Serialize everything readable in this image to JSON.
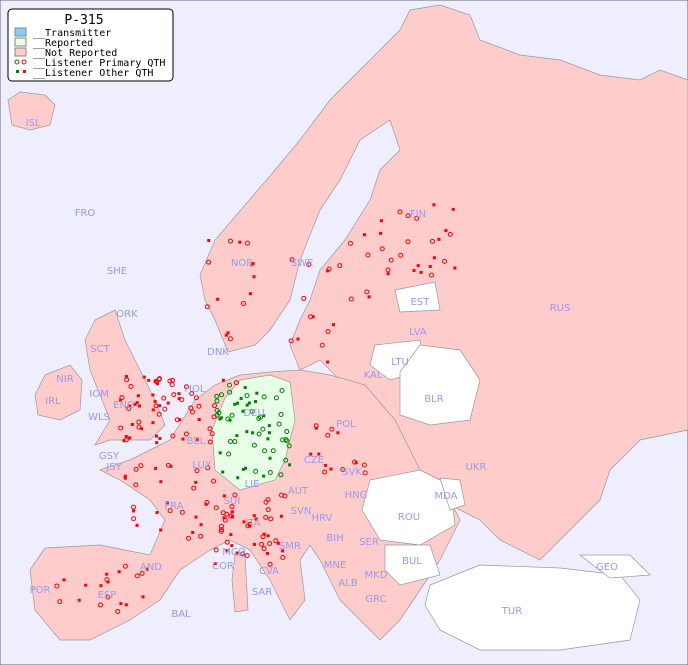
{
  "legend": {
    "title": "P-315",
    "items": [
      {
        "label": "__Transmitter",
        "color": "#87cefa"
      },
      {
        "label": "__Reported",
        "color": "#e6ffe6"
      },
      {
        "label": "__Not Reported",
        "color": "#ffcccc"
      },
      {
        "label": "__Listener Primary QTH",
        "marker": "ring"
      },
      {
        "label": "__Listener Other QTH",
        "marker": "square"
      }
    ]
  },
  "colors": {
    "sea": "#eeeeff",
    "not_reported": "#ffcccc",
    "reported": "#e6ffe6",
    "unlisted": "#ffffff",
    "listener_reported": "#008000",
    "listener_not_reported": "#ff0000",
    "label": "#9999ee"
  },
  "countries": [
    "ISL",
    "FRO",
    "SHE",
    "ORK",
    "NOR",
    "SWE",
    "FIN",
    "EST",
    "LVA",
    "RUS",
    "LTU",
    "KAL",
    "BLR",
    "DNK",
    "HOL",
    "DEU",
    "POL",
    "IRL",
    "NIR",
    "SCT",
    "IOM",
    "WLS",
    "ENG",
    "GSY",
    "JSY",
    "BEL",
    "LUX",
    "CZE",
    "SVK",
    "UKR",
    "FRA",
    "SUI",
    "LIE",
    "AUT",
    "HNG",
    "MDA",
    "ROU",
    "SVN",
    "HRV",
    "ITA",
    "BIH",
    "SER",
    "SMR",
    "MCO",
    "COR",
    "CVA",
    "MNE",
    "BUL",
    "GEO",
    "AND",
    "ALB",
    "MKD",
    "POR",
    "ESP",
    "SAR",
    "BAL",
    "GRC",
    "TUR"
  ]
}
